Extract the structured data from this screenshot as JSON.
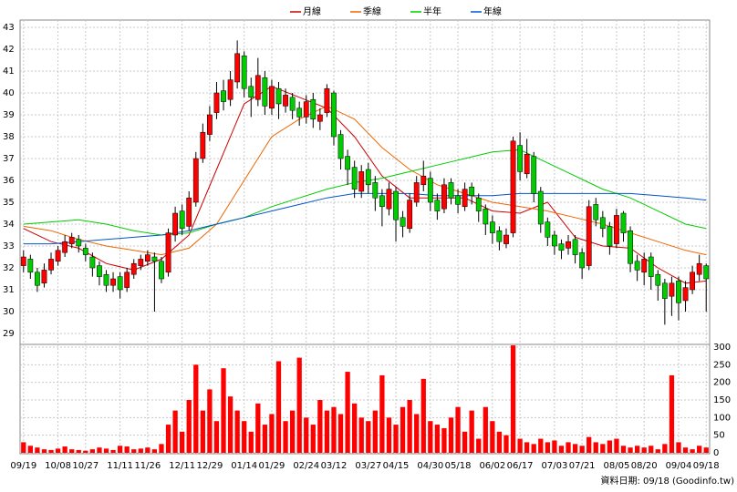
{
  "chart_data": {
    "type": "candlestick",
    "xticks": [
      {
        "value": 0,
        "label": "09/19"
      },
      {
        "value": 5,
        "label": "10/08"
      },
      {
        "value": 9,
        "label": "10/27"
      },
      {
        "value": 14,
        "label": "11/11"
      },
      {
        "value": 18,
        "label": "11/26"
      },
      {
        "value": 23,
        "label": "12/11"
      },
      {
        "value": 27,
        "label": "12/29"
      },
      {
        "value": 32,
        "label": "01/14"
      },
      {
        "value": 36,
        "label": "01/29"
      },
      {
        "value": 41,
        "label": "02/24"
      },
      {
        "value": 45,
        "label": "03/12"
      },
      {
        "value": 50,
        "label": "03/27"
      },
      {
        "value": 54,
        "label": "04/15"
      },
      {
        "value": 59,
        "label": "04/30"
      },
      {
        "value": 63,
        "label": "05/18"
      },
      {
        "value": 68,
        "label": "06/02"
      },
      {
        "value": 72,
        "label": "06/17"
      },
      {
        "value": 77,
        "label": "07/03"
      },
      {
        "value": 81,
        "label": "07/21"
      },
      {
        "value": 86,
        "label": "08/05"
      },
      {
        "value": 90,
        "label": "08/20"
      },
      {
        "value": 95,
        "label": "09/04"
      },
      {
        "value": 99,
        "label": "09/18"
      }
    ],
    "open": [
      32.1,
      32.4,
      31.8,
      31.3,
      31.9,
      32.3,
      32.7,
      33.1,
      33.3,
      32.9,
      32.5,
      32.1,
      31.7,
      31.2,
      31.6,
      31.1,
      31.7,
      32.1,
      32.3,
      32.5,
      32.3,
      31.8,
      33.5,
      34.6,
      33.9,
      35.0,
      37.0,
      38.1,
      39.1,
      40.1,
      39.7,
      40.5,
      41.7,
      40.3,
      39.7,
      40.7,
      39.3,
      40.2,
      39.4,
      39.8,
      39.3,
      38.9,
      39.7,
      38.7,
      39.1,
      40.0,
      38.1,
      37.1,
      36.6,
      35.5,
      36.5,
      35.9,
      35.3,
      34.7,
      35.5,
      34.3,
      33.8,
      35.0,
      35.8,
      36.1,
      35.1,
      34.7,
      35.9,
      35.3,
      34.8,
      35.7,
      35.2,
      34.7,
      34.1,
      33.7,
      33.1,
      33.6,
      37.6,
      36.3,
      37.1,
      35.5,
      34.1,
      33.5,
      33.1,
      32.9,
      33.3,
      32.7,
      32.1,
      34.9,
      34.3,
      33.9,
      33.1,
      34.5,
      33.7,
      32.3,
      31.8,
      32.5,
      31.7,
      31.3,
      30.7,
      31.4,
      30.5,
      31.0,
      31.7,
      32.1
    ],
    "high": [
      32.8,
      32.6,
      32.0,
      32.2,
      32.7,
      33.0,
      33.5,
      33.6,
      33.5,
      33.1,
      32.7,
      32.3,
      31.9,
      31.8,
      31.8,
      32.0,
      32.4,
      32.6,
      32.8,
      32.7,
      32.5,
      33.8,
      34.8,
      34.9,
      35.5,
      37.3,
      38.6,
      39.4,
      40.5,
      40.6,
      41.0,
      42.4,
      41.9,
      40.7,
      41.6,
      41.0,
      40.6,
      40.5,
      40.2,
      40.0,
      39.6,
      39.9,
      40.0,
      39.3,
      40.4,
      40.1,
      38.3,
      37.4,
      36.9,
      36.7,
      36.8,
      36.2,
      35.6,
      35.9,
      35.7,
      34.6,
      35.4,
      36.2,
      36.9,
      36.4,
      35.4,
      36.1,
      36.1,
      35.6,
      35.9,
      35.9,
      35.4,
      34.9,
      34.4,
      33.9,
      33.8,
      38.0,
      38.2,
      37.9,
      37.3,
      35.7,
      34.3,
      33.7,
      33.3,
      33.5,
      33.5,
      32.9,
      35.1,
      35.2,
      34.6,
      34.1,
      34.7,
      34.6,
      33.9,
      32.6,
      32.7,
      32.7,
      31.9,
      31.5,
      31.6,
      31.6,
      31.4,
      32.1,
      32.6,
      32.2
    ],
    "low": [
      31.8,
      31.5,
      30.9,
      31.1,
      31.7,
      32.1,
      32.5,
      32.9,
      32.7,
      32.3,
      31.6,
      31.2,
      30.9,
      30.9,
      30.6,
      30.9,
      31.5,
      31.9,
      32.1,
      30.0,
      31.3,
      31.6,
      33.2,
      33.5,
      33.7,
      34.8,
      36.8,
      37.8,
      38.8,
      39.2,
      39.4,
      40.2,
      39.8,
      38.9,
      39.4,
      39.0,
      39.0,
      38.8,
      39.1,
      38.8,
      38.5,
      38.6,
      38.4,
      38.3,
      38.9,
      37.6,
      36.5,
      35.8,
      35.2,
      35.2,
      35.4,
      34.6,
      33.9,
      34.4,
      33.2,
      33.4,
      33.6,
      34.8,
      35.5,
      34.6,
      34.2,
      34.5,
      34.9,
      34.5,
      34.6,
      34.9,
      34.1,
      33.5,
      33.1,
      32.8,
      32.9,
      33.4,
      36.0,
      36.1,
      35.0,
      33.6,
      33.0,
      32.6,
      32.4,
      32.6,
      32.2,
      31.5,
      31.9,
      33.9,
      33.4,
      32.6,
      32.9,
      33.2,
      31.8,
      31.4,
      31.2,
      31.0,
      30.5,
      29.4,
      29.8,
      29.6,
      30.0,
      30.8,
      31.4,
      30.0
    ],
    "close": [
      32.5,
      31.8,
      31.2,
      31.9,
      32.4,
      32.8,
      33.2,
      33.4,
      33.0,
      32.6,
      32.0,
      31.6,
      31.2,
      31.5,
      31.0,
      31.8,
      32.2,
      32.4,
      32.6,
      32.3,
      31.5,
      33.6,
      34.5,
      33.8,
      35.2,
      37.0,
      38.2,
      39.0,
      40.0,
      39.6,
      40.6,
      41.8,
      40.2,
      39.8,
      40.8,
      39.4,
      40.3,
      39.5,
      39.9,
      39.2,
      38.9,
      39.6,
      38.8,
      39.0,
      40.2,
      38.0,
      37.0,
      36.5,
      35.6,
      36.4,
      35.8,
      35.2,
      34.8,
      35.6,
      34.2,
      33.9,
      35.1,
      35.9,
      36.2,
      35.0,
      34.6,
      35.8,
      35.2,
      34.9,
      35.6,
      35.3,
      34.6,
      34.0,
      33.6,
      33.2,
      33.5,
      37.8,
      36.4,
      37.2,
      35.4,
      34.0,
      33.4,
      33.0,
      32.8,
      33.2,
      32.6,
      32.0,
      34.8,
      34.2,
      33.8,
      33.0,
      34.4,
      33.6,
      32.2,
      31.9,
      32.4,
      31.6,
      31.2,
      30.6,
      31.3,
      30.4,
      31.1,
      31.8,
      32.2,
      31.5
    ],
    "volume": [
      30,
      20,
      15,
      10,
      8,
      12,
      18,
      10,
      8,
      6,
      10,
      15,
      12,
      8,
      20,
      18,
      10,
      12,
      15,
      10,
      25,
      80,
      120,
      60,
      150,
      250,
      120,
      180,
      90,
      240,
      160,
      120,
      90,
      60,
      140,
      80,
      110,
      260,
      90,
      120,
      270,
      100,
      80,
      150,
      120,
      130,
      110,
      230,
      140,
      100,
      90,
      120,
      220,
      100,
      80,
      130,
      150,
      110,
      210,
      90,
      80,
      70,
      100,
      130,
      60,
      120,
      40,
      130,
      90,
      60,
      50,
      305,
      40,
      30,
      25,
      40,
      30,
      35,
      20,
      30,
      25,
      20,
      45,
      30,
      25,
      35,
      40,
      20,
      15,
      20,
      15,
      20,
      10,
      25,
      220,
      30,
      15,
      10,
      20,
      15
    ],
    "series": [
      {
        "name": "月線",
        "color": "#cc0000",
        "x": [
          0,
          4,
          8,
          12,
          16,
          20,
          24,
          28,
          32,
          36,
          40,
          44,
          48,
          52,
          56,
          60,
          64,
          68,
          72,
          76,
          80,
          84,
          88,
          92,
          96,
          99
        ],
        "values": [
          33.8,
          33.2,
          32.9,
          32.2,
          31.9,
          32.4,
          33.5,
          36.5,
          39.5,
          40.3,
          39.8,
          39.3,
          38.0,
          36.2,
          35.2,
          35.2,
          35.2,
          34.6,
          34.5,
          35.0,
          33.4,
          33.0,
          32.9,
          32.0,
          31.3,
          31.4
        ]
      },
      {
        "name": "季線",
        "color": "#ee6600",
        "x": [
          0,
          4,
          8,
          12,
          16,
          20,
          24,
          28,
          32,
          36,
          40,
          44,
          48,
          52,
          56,
          60,
          64,
          68,
          72,
          76,
          80,
          84,
          88,
          92,
          96,
          99
        ],
        "values": [
          33.9,
          33.7,
          33.3,
          33.0,
          32.8,
          32.6,
          32.9,
          34.0,
          36.0,
          38.0,
          38.8,
          39.4,
          38.8,
          37.5,
          36.5,
          35.8,
          35.4,
          35.0,
          34.8,
          34.6,
          34.3,
          34.0,
          33.6,
          33.2,
          32.8,
          32.6
        ]
      },
      {
        "name": "半年",
        "color": "#00cc00",
        "x": [
          0,
          4,
          8,
          12,
          16,
          20,
          24,
          28,
          32,
          36,
          40,
          44,
          48,
          52,
          56,
          60,
          64,
          68,
          72,
          76,
          80,
          84,
          88,
          92,
          96,
          99
        ],
        "values": [
          34.0,
          34.1,
          34.2,
          34.0,
          33.7,
          33.5,
          33.6,
          34.0,
          34.3,
          34.8,
          35.2,
          35.6,
          35.9,
          36.1,
          36.4,
          36.7,
          37.0,
          37.3,
          37.4,
          36.8,
          36.2,
          35.6,
          35.2,
          34.6,
          34.0,
          33.8
        ]
      },
      {
        "name": "年線",
        "color": "#0055cc",
        "x": [
          0,
          4,
          8,
          12,
          16,
          20,
          24,
          28,
          32,
          36,
          40,
          44,
          48,
          52,
          56,
          60,
          64,
          68,
          72,
          76,
          80,
          84,
          88,
          92,
          96,
          99
        ],
        "values": [
          33.1,
          33.1,
          33.2,
          33.3,
          33.4,
          33.5,
          33.7,
          34.0,
          34.3,
          34.6,
          34.9,
          35.2,
          35.4,
          35.4,
          35.4,
          35.3,
          35.3,
          35.3,
          35.4,
          35.4,
          35.4,
          35.4,
          35.4,
          35.3,
          35.2,
          35.1
        ]
      }
    ],
    "ylim": [
      28.5,
      43
    ],
    "yticks": [
      29,
      30,
      31,
      32,
      33,
      34,
      35,
      36,
      37,
      38,
      39,
      40,
      41,
      42,
      43
    ],
    "volume_lim": [
      0,
      300
    ],
    "volume_ticks": [
      0,
      50,
      100,
      150,
      200,
      250,
      300
    ],
    "up_color": "#ff0000",
    "down_color": "#00cc00",
    "volume_color": "#ff0000",
    "grid": true,
    "legend": "top",
    "footer": "資料日期: 09/18 (Goodinfo.tw)"
  }
}
